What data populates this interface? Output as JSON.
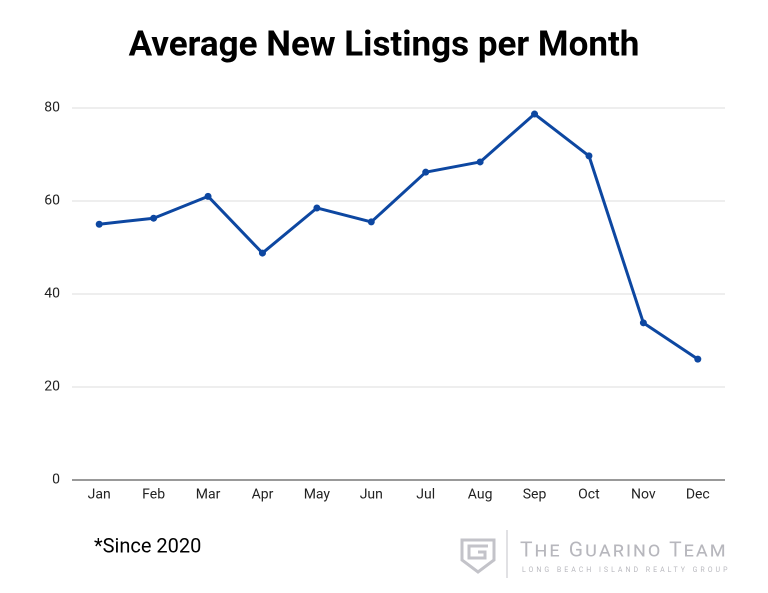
{
  "chart_data": {
    "type": "line",
    "title": "Average New Listings per Month",
    "categories": [
      "Jan",
      "Feb",
      "Mar",
      "Apr",
      "May",
      "Jun",
      "Jul",
      "Aug",
      "Sep",
      "Oct",
      "Nov",
      "Dec"
    ],
    "values": [
      55,
      56.3,
      61,
      48.8,
      58.5,
      55.5,
      66.2,
      68.4,
      78.7,
      69.7,
      33.8,
      26
    ],
    "color": "#0d47a1",
    "ylim": [
      0,
      80
    ],
    "yticks": [
      0,
      20,
      40,
      60,
      80
    ],
    "grid": true,
    "annotations": [
      "*Since 2020"
    ]
  },
  "logo": {
    "name": "The Guarino Team",
    "tagline": "LONG BEACH ISLAND REALTY GROUP"
  }
}
